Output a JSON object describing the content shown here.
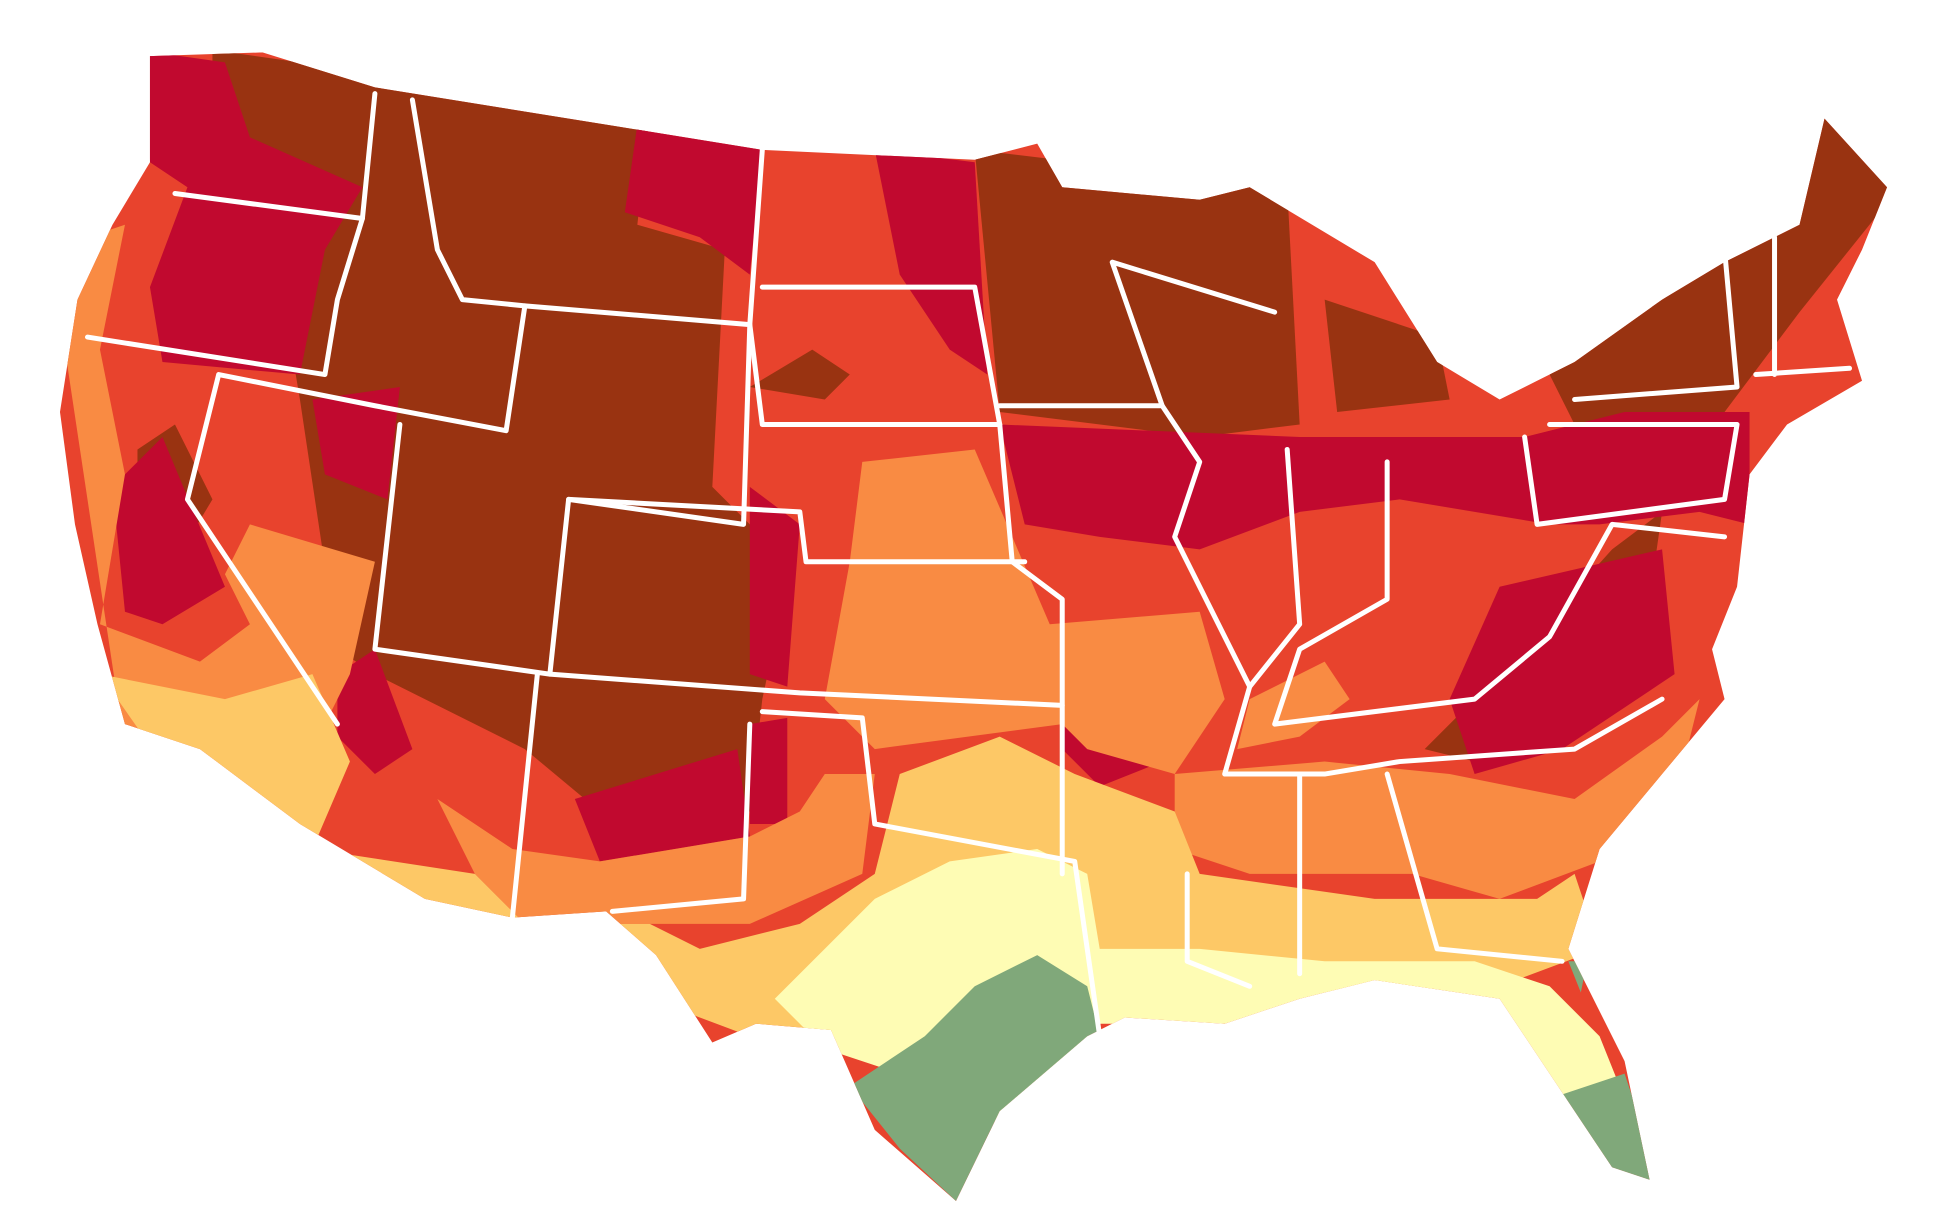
{
  "map": {
    "type": "choropleth",
    "colors": {
      "class_1": "#993311",
      "class_2": "#c1092f",
      "class_3": "#e8432d",
      "class_4": "#f98b43",
      "class_5": "#fdc866",
      "class_6": "#fefcb4",
      "class_7": "#80a87a",
      "border": "#ffffff"
    }
  }
}
